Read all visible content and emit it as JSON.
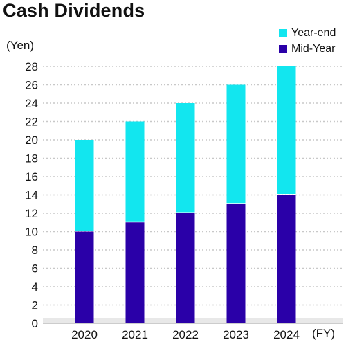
{
  "title": "Cash Dividends",
  "unit_label": "(Yen)",
  "x_unit_label": "(FY)",
  "colors": {
    "mid_year": "#2a00a8",
    "year_end": "#12e6ef",
    "grid": "#c8c8c8",
    "baseline_band": "#e8e8e8"
  },
  "chart_data": {
    "type": "bar",
    "stacked": true,
    "title": "Cash Dividends",
    "xlabel": "(FY)",
    "ylabel": "(Yen)",
    "categories": [
      "2020",
      "2021",
      "2022",
      "2023",
      "2024"
    ],
    "series": [
      {
        "name": "Mid-Year",
        "values": [
          10,
          11,
          12,
          13,
          14
        ]
      },
      {
        "name": "Year-end",
        "values": [
          10,
          11,
          12,
          13,
          14
        ]
      }
    ],
    "ylim": [
      0,
      28
    ],
    "yticks": [
      "0",
      "2",
      "4",
      "6",
      "8",
      "10",
      "12",
      "14",
      "16",
      "18",
      "20",
      "22",
      "24",
      "26",
      "28"
    ],
    "grid": true,
    "legend_position": "top-right"
  }
}
